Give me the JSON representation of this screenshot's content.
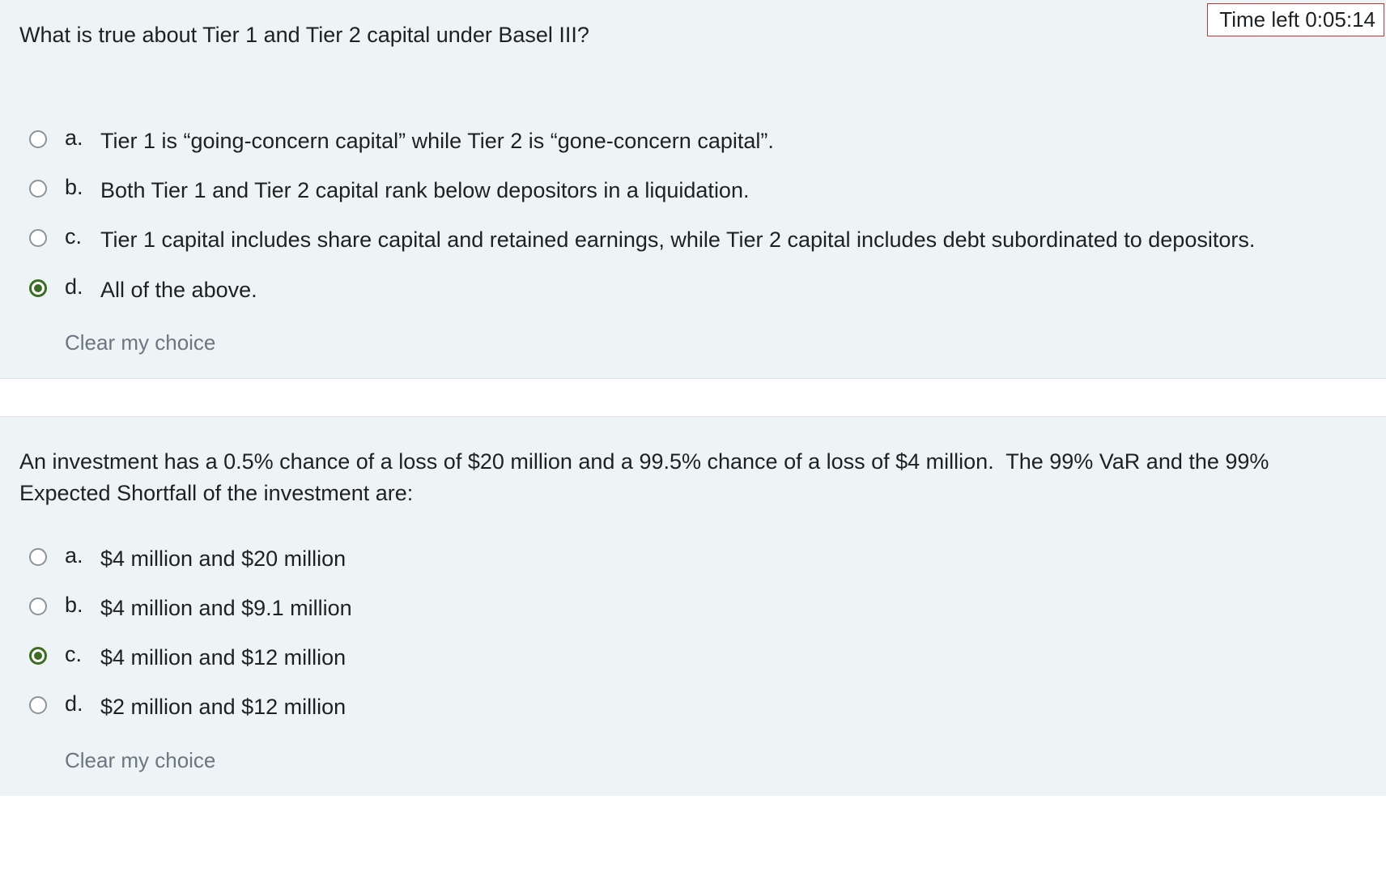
{
  "timer": {
    "label": "Time left",
    "value": "0:05:14"
  },
  "questions": [
    {
      "prompt": "What is true about Tier 1 and Tier 2 capital under Basel III?",
      "options": [
        {
          "letter": "a.",
          "text": "Tier 1 is “going-concern capital” while Tier 2 is “gone-concern capital”.",
          "selected": false
        },
        {
          "letter": "b.",
          "text": "Both Tier 1 and Tier 2 capital rank below depositors in a liquidation.",
          "selected": false
        },
        {
          "letter": "c.",
          "text": "Tier 1 capital includes share capital and retained earnings, while Tier 2 capital includes debt subordinated to depositors.",
          "selected": false
        },
        {
          "letter": "d.",
          "text": "All of the above.",
          "selected": true
        }
      ],
      "clear_label": "Clear my choice"
    },
    {
      "prompt": "An investment has a 0.5% chance of a loss of $20 million and a 99.5% chance of a loss of $4 million.  The 99% VaR and the 99% Expected Shortfall of the investment are:",
      "options": [
        {
          "letter": "a.",
          "text": "$4 million and $20 million",
          "selected": false
        },
        {
          "letter": "b.",
          "text": "$4 million and $9.1 million",
          "selected": false
        },
        {
          "letter": "c.",
          "text": "$4 million and $12 million",
          "selected": true
        },
        {
          "letter": "d.",
          "text": "$2 million and $12 million",
          "selected": false
        }
      ],
      "clear_label": "Clear my choice"
    }
  ],
  "colors": {
    "panel_bg": "#eef3f5",
    "text": "#1d2125",
    "muted": "#6a7680",
    "radio_border": "#8a9499",
    "radio_selected": "#3b6e22",
    "timer_border": "#cc3333",
    "separator_border": "#dfe3e6"
  }
}
